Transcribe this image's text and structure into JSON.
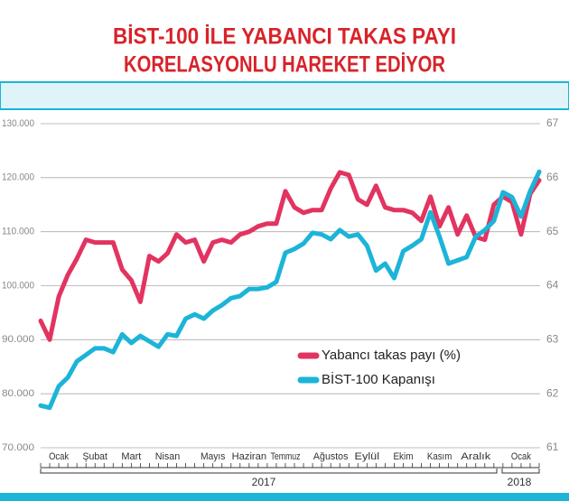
{
  "chart_data": {
    "type": "line",
    "title": [
      "BİST-100 İLE YABANCI TAKAS PAYI",
      "KORELASYONLU HAREKET EDİYOR"
    ],
    "categories": [
      null,
      null,
      "Ocak",
      null,
      null,
      null,
      "Şubat",
      null,
      null,
      null,
      "Mart",
      null,
      null,
      null,
      "Nisan",
      null,
      null,
      null,
      null,
      "Mayıs",
      null,
      null,
      null,
      "Haziran",
      null,
      null,
      null,
      "Temmuz",
      null,
      null,
      null,
      null,
      "Ağustos",
      null,
      null,
      null,
      "Eylül",
      null,
      null,
      null,
      "Ekim",
      null,
      null,
      null,
      "Kasım",
      null,
      null,
      null,
      "Aralık",
      null,
      null,
      null,
      null,
      "Ocak",
      null,
      null
    ],
    "years": [
      "2017",
      "2018"
    ],
    "series": [
      {
        "name": "Yabancı takas payı (%)",
        "color": "#e23461",
        "axis": "y2",
        "values": [
          63.35,
          63.0,
          63.8,
          64.2,
          64.5,
          64.85,
          64.8,
          64.8,
          64.8,
          64.3,
          64.1,
          63.7,
          64.55,
          64.45,
          64.6,
          64.95,
          64.8,
          64.85,
          64.45,
          64.8,
          64.85,
          64.8,
          64.95,
          65.0,
          65.1,
          65.15,
          65.15,
          65.75,
          65.45,
          65.35,
          65.4,
          65.4,
          65.8,
          66.1,
          66.05,
          65.6,
          65.5,
          65.85,
          65.45,
          65.4,
          65.4,
          65.35,
          65.2,
          65.65,
          65.1,
          65.45,
          64.95,
          65.3,
          64.9,
          64.85,
          65.5,
          65.65,
          65.55,
          64.95,
          65.7,
          65.95
        ]
      },
      {
        "name": "BİST-100 Kapanışı",
        "color": "#1cb4d8",
        "axis": "y",
        "values": [
          77800,
          77400,
          81400,
          83000,
          86000,
          87200,
          88400,
          88400,
          87700,
          91000,
          89400,
          90700,
          89700,
          88700,
          91000,
          90700,
          93900,
          94700,
          93900,
          95400,
          96400,
          97700,
          98100,
          99400,
          99400,
          99700,
          100700,
          106100,
          106800,
          107800,
          109800,
          109500,
          108600,
          110300,
          109100,
          109500,
          107400,
          102800,
          104100,
          101400,
          106400,
          107400,
          108600,
          113600,
          109100,
          104100,
          104700,
          105300,
          109100,
          110300,
          112000,
          117300,
          116400,
          112800,
          117500,
          121100
        ]
      }
    ],
    "ylim": [
      70000,
      130000
    ],
    "yticks": [
      {
        "value": 70000,
        "label": "70.000"
      },
      {
        "value": 80000,
        "label": "80.000"
      },
      {
        "value": 90000,
        "label": "90.000"
      },
      {
        "value": 100000,
        "label": "100.000"
      },
      {
        "value": 110000,
        "label": "110.000"
      },
      {
        "value": 120000,
        "label": "120.000"
      },
      {
        "value": 130000,
        "label": "130.000"
      }
    ],
    "y2lim": [
      61,
      67
    ],
    "y2ticks": [
      61,
      62,
      63,
      64,
      65,
      66,
      67
    ],
    "grid": true
  }
}
